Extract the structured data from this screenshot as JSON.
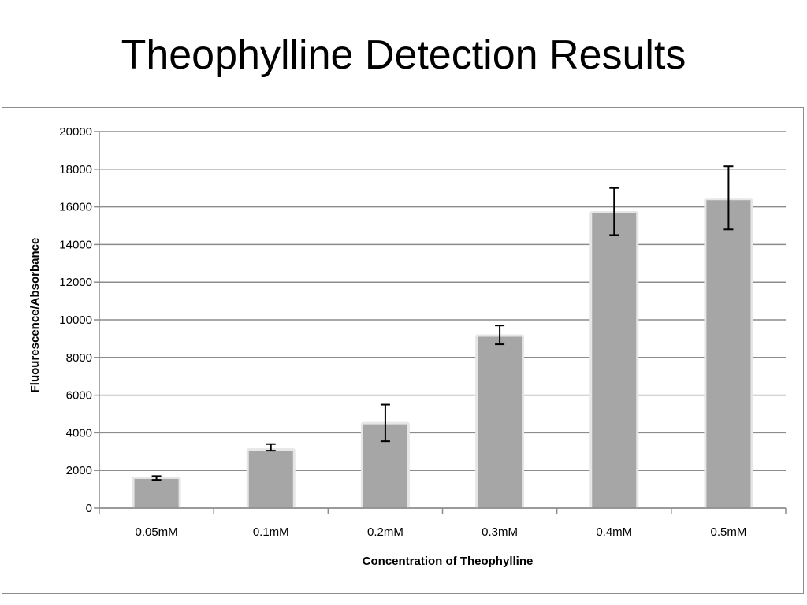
{
  "slide": {
    "title": "Theophylline Detection Results"
  },
  "chart_data": {
    "type": "bar",
    "categories": [
      "0.05mM",
      "0.1mM",
      "0.2mM",
      "0.3mM",
      "0.4mM",
      "0.5mM"
    ],
    "series": [
      {
        "values": [
          1550,
          3050,
          4450,
          9100,
          15650,
          16350
        ],
        "error_low": [
          1500,
          3050,
          3550,
          8700,
          14500,
          14800
        ],
        "error_high": [
          1700,
          3400,
          5500,
          9700,
          17000,
          18150
        ]
      }
    ],
    "ylim": [
      0,
      20000
    ],
    "yticks": [
      0,
      2000,
      4000,
      6000,
      8000,
      10000,
      12000,
      14000,
      16000,
      18000,
      20000
    ],
    "xlabel": "Concentration of Theophylline",
    "ylabel": "Fluourescence/Absorbance",
    "grid": true,
    "legend": "none",
    "colors": {
      "bar": "#a6a6a6",
      "grid": "#8c8c8c",
      "error_bar": "#000000"
    }
  }
}
